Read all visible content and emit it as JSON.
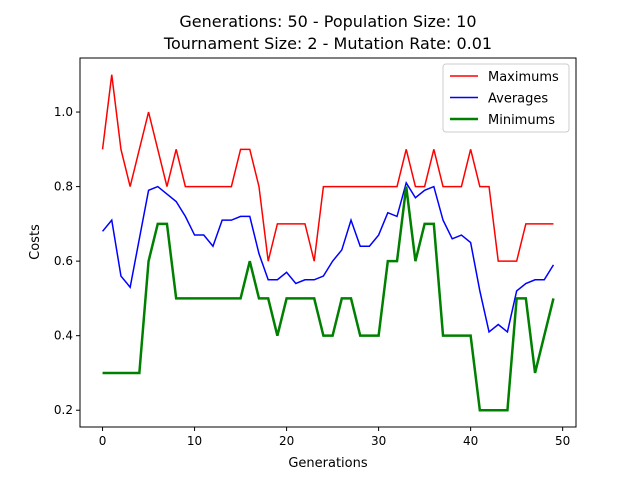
{
  "chart_data": {
    "type": "line",
    "title_line1": "Generations: 50 - Population Size: 10",
    "title_line2": "Tournament Size: 2 - Mutation Rate: 0.01",
    "xlabel": "Generations",
    "ylabel": "Costs",
    "xlim": [
      -2.45,
      51.45
    ],
    "ylim": [
      0.155,
      1.145
    ],
    "xticks": [
      0,
      10,
      20,
      30,
      40,
      50
    ],
    "yticks": [
      0.2,
      0.4,
      0.6,
      0.8,
      1.0
    ],
    "grid": false,
    "legend_position": "top-right",
    "x": [
      0,
      1,
      2,
      3,
      4,
      5,
      6,
      7,
      8,
      9,
      10,
      11,
      12,
      13,
      14,
      15,
      16,
      17,
      18,
      19,
      20,
      21,
      22,
      23,
      24,
      25,
      26,
      27,
      28,
      29,
      30,
      31,
      32,
      33,
      34,
      35,
      36,
      37,
      38,
      39,
      40,
      41,
      42,
      43,
      44,
      45,
      46,
      47,
      48,
      49
    ],
    "series": [
      {
        "name": "Maximums",
        "color": "#ff0000",
        "width": 1.5,
        "values": [
          0.9,
          1.1,
          0.9,
          0.8,
          0.9,
          1.0,
          0.9,
          0.8,
          0.9,
          0.8,
          0.8,
          0.8,
          0.8,
          0.8,
          0.8,
          0.9,
          0.9,
          0.8,
          0.6,
          0.7,
          0.7,
          0.7,
          0.7,
          0.6,
          0.8,
          0.8,
          0.8,
          0.8,
          0.8,
          0.8,
          0.8,
          0.8,
          0.8,
          0.9,
          0.8,
          0.8,
          0.9,
          0.8,
          0.8,
          0.8,
          0.9,
          0.8,
          0.8,
          0.6,
          0.6,
          0.6,
          0.7,
          0.7,
          0.7,
          0.7
        ]
      },
      {
        "name": "Averages",
        "color": "#0000ff",
        "width": 1.5,
        "values": [
          0.68,
          0.71,
          0.56,
          0.53,
          0.66,
          0.79,
          0.8,
          0.78,
          0.76,
          0.72,
          0.67,
          0.67,
          0.64,
          0.71,
          0.71,
          0.72,
          0.72,
          0.62,
          0.55,
          0.55,
          0.57,
          0.54,
          0.55,
          0.55,
          0.56,
          0.6,
          0.63,
          0.71,
          0.64,
          0.64,
          0.67,
          0.73,
          0.72,
          0.81,
          0.77,
          0.79,
          0.8,
          0.71,
          0.66,
          0.67,
          0.65,
          0.52,
          0.41,
          0.43,
          0.41,
          0.52,
          0.54,
          0.55,
          0.55,
          0.59
        ]
      },
      {
        "name": "Minimums",
        "color": "#008000",
        "width": 2.5,
        "values": [
          0.3,
          0.3,
          0.3,
          0.3,
          0.3,
          0.6,
          0.7,
          0.7,
          0.5,
          0.5,
          0.5,
          0.5,
          0.5,
          0.5,
          0.5,
          0.5,
          0.6,
          0.5,
          0.5,
          0.4,
          0.5,
          0.5,
          0.5,
          0.5,
          0.4,
          0.4,
          0.5,
          0.5,
          0.4,
          0.4,
          0.4,
          0.6,
          0.6,
          0.8,
          0.6,
          0.7,
          0.7,
          0.4,
          0.4,
          0.4,
          0.4,
          0.2,
          0.2,
          0.2,
          0.2,
          0.5,
          0.5,
          0.3,
          0.4,
          0.5
        ]
      }
    ]
  }
}
